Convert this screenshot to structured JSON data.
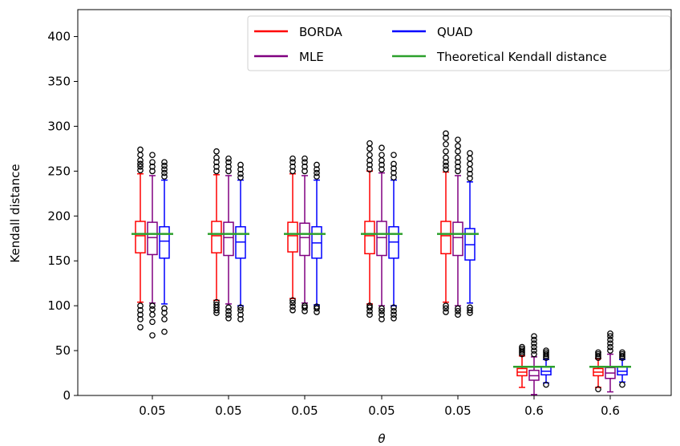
{
  "chart_data": {
    "type": "box",
    "xlabel": "θ",
    "ylabel": "Kendall distance",
    "ylim": [
      0,
      430
    ],
    "yticks": [
      0,
      50,
      100,
      150,
      200,
      250,
      300,
      350,
      400
    ],
    "categories": [
      "0.05",
      "0.05",
      "0.05",
      "0.05",
      "0.05",
      "0.6",
      "0.6"
    ],
    "grid": false,
    "legend_position": "top-right",
    "legend": [
      {
        "label": "BORDA",
        "color": "#ff0000"
      },
      {
        "label": "QUAD",
        "color": "#0000ff"
      },
      {
        "label": "MLE",
        "color": "#800080"
      },
      {
        "label": "Theoretical Kendall distance",
        "color": "#2ca02c"
      }
    ],
    "series": [
      {
        "name": "BORDA",
        "color": "#ff0000",
        "boxes": [
          {
            "q1": 159,
            "median": 178,
            "q3": 194,
            "whislo": 104,
            "whishi": 247,
            "outliers": [
              76,
              85,
              90,
              95,
              100,
              251,
              255,
              258,
              262,
              268,
              274
            ]
          },
          {
            "q1": 159,
            "median": 178,
            "q3": 194,
            "whislo": 106,
            "whishi": 246,
            "outliers": [
              92,
              95,
              98,
              101,
              104,
              250,
              255,
              260,
              265,
              272
            ]
          },
          {
            "q1": 160,
            "median": 178,
            "q3": 193,
            "whislo": 108,
            "whishi": 247,
            "outliers": [
              95,
              99,
              103,
              106,
              250,
              255,
              260,
              264
            ]
          },
          {
            "q1": 158,
            "median": 178,
            "q3": 194,
            "whislo": 102,
            "whishi": 250,
            "outliers": [
              90,
              94,
              98,
              100,
              252,
              257,
              262,
              268,
              275,
              281
            ]
          },
          {
            "q1": 158,
            "median": 178,
            "q3": 194,
            "whislo": 104,
            "whishi": 249,
            "outliers": [
              93,
              97,
              100,
              252,
              256,
              260,
              265,
              272,
              280,
              287,
              292
            ]
          },
          {
            "q1": 22,
            "median": 26,
            "q3": 30,
            "whislo": 9,
            "whishi": 44,
            "outliers": [
              46,
              48,
              50,
              52,
              54
            ]
          },
          {
            "q1": 22,
            "median": 26,
            "q3": 30,
            "whislo": 9,
            "whishi": 41,
            "outliers": [
              7,
              42,
              44,
              46,
              48
            ]
          }
        ]
      },
      {
        "name": "MLE",
        "color": "#800080",
        "boxes": [
          {
            "q1": 157,
            "median": 176,
            "q3": 193,
            "whislo": 103,
            "whishi": 245,
            "outliers": [
              67,
              82,
              90,
              96,
              100,
              250,
              255,
              260,
              268
            ]
          },
          {
            "q1": 156,
            "median": 176,
            "q3": 193,
            "whislo": 102,
            "whishi": 245,
            "outliers": [
              86,
              90,
              94,
              98,
              250,
              255,
              260,
              264
            ]
          },
          {
            "q1": 156,
            "median": 176,
            "q3": 192,
            "whislo": 103,
            "whishi": 245,
            "outliers": [
              94,
              98,
              100,
              250,
              255,
              260,
              264
            ]
          },
          {
            "q1": 156,
            "median": 176,
            "q3": 194,
            "whislo": 100,
            "whishi": 248,
            "outliers": [
              85,
              90,
              94,
              97,
              252,
              257,
              262,
              268,
              276
            ]
          },
          {
            "q1": 156,
            "median": 176,
            "q3": 193,
            "whislo": 100,
            "whishi": 245,
            "outliers": [
              90,
              94,
              97,
              250,
              255,
              260,
              265,
              272,
              278,
              285
            ]
          },
          {
            "q1": 17,
            "median": 22,
            "q3": 28,
            "whislo": 1,
            "whishi": 43,
            "outliers": [
              46,
              50,
              54,
              58,
              62,
              66
            ]
          },
          {
            "q1": 19,
            "median": 25,
            "q3": 31,
            "whislo": 4,
            "whishi": 46,
            "outliers": [
              50,
              54,
              58,
              62,
              66,
              69
            ]
          }
        ]
      },
      {
        "name": "QUAD",
        "color": "#0000ff",
        "boxes": [
          {
            "q1": 153,
            "median": 172,
            "q3": 188,
            "whislo": 102,
            "whishi": 240,
            "outliers": [
              71,
              85,
              92,
              97,
              244,
              248,
              252,
              256,
              260
            ]
          },
          {
            "q1": 153,
            "median": 171,
            "q3": 188,
            "whislo": 100,
            "whishi": 240,
            "outliers": [
              85,
              90,
              95,
              98,
              243,
              247,
              252,
              257
            ]
          },
          {
            "q1": 153,
            "median": 170,
            "q3": 188,
            "whislo": 101,
            "whishi": 240,
            "outliers": [
              93,
              97,
              99,
              244,
              248,
              252,
              257
            ]
          },
          {
            "q1": 153,
            "median": 171,
            "q3": 188,
            "whislo": 100,
            "whishi": 240,
            "outliers": [
              86,
              90,
              94,
              98,
              243,
              248,
              253,
              258,
              268
            ]
          },
          {
            "q1": 151,
            "median": 168,
            "q3": 186,
            "whislo": 103,
            "whishi": 238,
            "outliers": [
              92,
              95,
              98,
              242,
              247,
              252,
              258,
              264,
              270
            ]
          },
          {
            "q1": 23,
            "median": 27,
            "q3": 32,
            "whislo": 14,
            "whishi": 40,
            "outliers": [
              12,
              42,
              44,
              46,
              48,
              50
            ]
          },
          {
            "q1": 23,
            "median": 27,
            "q3": 32,
            "whislo": 15,
            "whishi": 40,
            "outliers": [
              12,
              42,
              44,
              46,
              48
            ]
          }
        ]
      }
    ],
    "theoretical": [
      180,
      180,
      180,
      180,
      180,
      32,
      32
    ]
  }
}
